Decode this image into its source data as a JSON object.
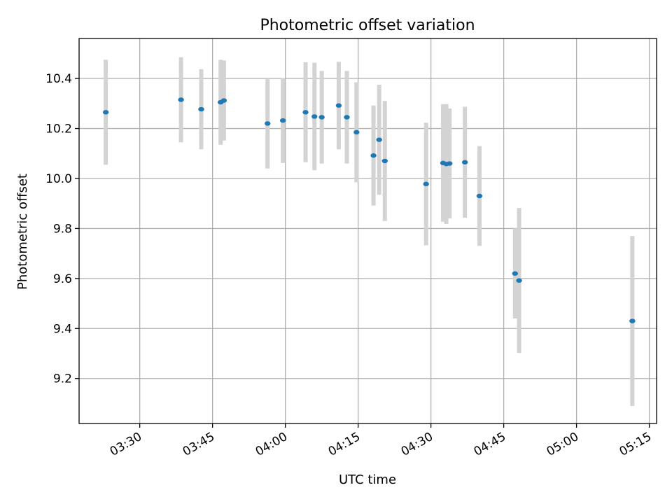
{
  "chart_data": {
    "type": "scatter",
    "title": "Photometric offset variation",
    "xlabel": "UTC time",
    "ylabel": "Photometric offset",
    "xlim": [
      "03:17:30",
      "05:16:30"
    ],
    "ylim": [
      9.02,
      10.56
    ],
    "x_ticks": [
      "03:30",
      "03:45",
      "04:00",
      "04:15",
      "04:30",
      "04:45",
      "05:00",
      "05:15"
    ],
    "y_ticks": [
      9.2,
      9.4,
      9.6,
      9.8,
      10.0,
      10.2,
      10.4
    ],
    "y_tick_labels": [
      "9.2",
      "9.4",
      "9.6",
      "9.8",
      "10.0",
      "10.2",
      "10.4"
    ],
    "grid": true,
    "point_color": "#1f77b4",
    "errorbar_color": "#d3d3d3",
    "points": [
      {
        "x": "03:23:00",
        "y": 10.265,
        "err": 0.21
      },
      {
        "x": "03:38:30",
        "y": 10.315,
        "err": 0.17
      },
      {
        "x": "03:42:40",
        "y": 10.277,
        "err": 0.16
      },
      {
        "x": "03:46:40",
        "y": 10.305,
        "err": 0.17
      },
      {
        "x": "03:47:20",
        "y": 10.312,
        "err": 0.16
      },
      {
        "x": "03:56:20",
        "y": 10.22,
        "err": 0.18
      },
      {
        "x": "03:59:30",
        "y": 10.232,
        "err": 0.17
      },
      {
        "x": "04:04:10",
        "y": 10.265,
        "err": 0.2
      },
      {
        "x": "04:06:00",
        "y": 10.248,
        "err": 0.215
      },
      {
        "x": "04:07:30",
        "y": 10.245,
        "err": 0.185
      },
      {
        "x": "04:11:00",
        "y": 10.292,
        "err": 0.175
      },
      {
        "x": "04:12:40",
        "y": 10.245,
        "err": 0.185
      },
      {
        "x": "04:14:40",
        "y": 10.185,
        "err": 0.2
      },
      {
        "x": "04:18:10",
        "y": 10.092,
        "err": 0.2
      },
      {
        "x": "04:19:20",
        "y": 10.155,
        "err": 0.22
      },
      {
        "x": "04:20:30",
        "y": 10.07,
        "err": 0.24
      },
      {
        "x": "04:29:00",
        "y": 9.978,
        "err": 0.245
      },
      {
        "x": "04:32:30",
        "y": 10.062,
        "err": 0.235
      },
      {
        "x": "04:33:10",
        "y": 10.058,
        "err": 0.24
      },
      {
        "x": "04:33:50",
        "y": 10.06,
        "err": 0.22
      },
      {
        "x": "04:37:00",
        "y": 10.065,
        "err": 0.222
      },
      {
        "x": "04:40:00",
        "y": 9.93,
        "err": 0.2
      },
      {
        "x": "04:47:20",
        "y": 9.62,
        "err": 0.18
      },
      {
        "x": "04:48:10",
        "y": 9.592,
        "err": 0.29
      },
      {
        "x": "05:11:30",
        "y": 9.43,
        "err": 0.34
      }
    ]
  }
}
